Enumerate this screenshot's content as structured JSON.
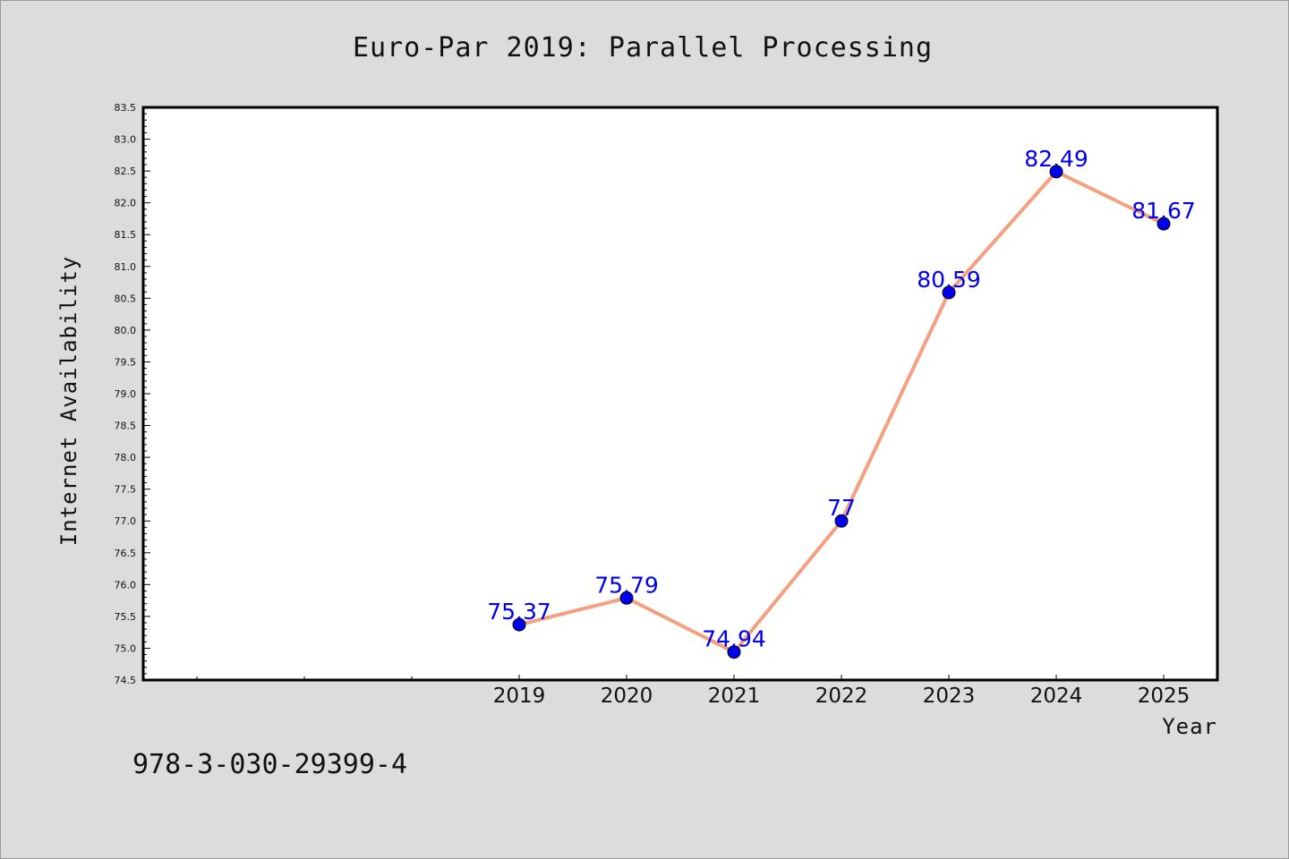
{
  "chart_data": {
    "type": "line",
    "title": "Euro-Par 2019: Parallel Processing",
    "xlabel": "Year",
    "ylabel": "Internet Availability",
    "categories": [
      "2019",
      "2020",
      "2021",
      "2022",
      "2023",
      "2024",
      "2025"
    ],
    "series": [
      {
        "values": [
          75.37,
          75.79,
          74.94,
          77,
          80.59,
          82.49,
          81.67
        ],
        "labels": [
          "75.37",
          "75.79",
          "74.94",
          "77",
          "80.59",
          "82.49",
          "81.67"
        ]
      }
    ],
    "ylim": [
      74.5,
      83.5
    ],
    "yticks": [
      "74.5",
      "75.0",
      "75.5",
      "76.0",
      "76.5",
      "77.0",
      "77.5",
      "78.0",
      "78.5",
      "79.0",
      "79.5",
      "80.0",
      "80.5",
      "81.0",
      "81.5",
      "82.0",
      "82.5",
      "83.0",
      "83.5"
    ],
    "grid": false,
    "line_color": "#f4a080",
    "marker_color": "#0000ee",
    "label_color": "#0000ee",
    "plot_background": "#ffffff",
    "page_background": "#dcdcdc"
  },
  "footer": {
    "isbn": "978-3-030-29399-4"
  }
}
